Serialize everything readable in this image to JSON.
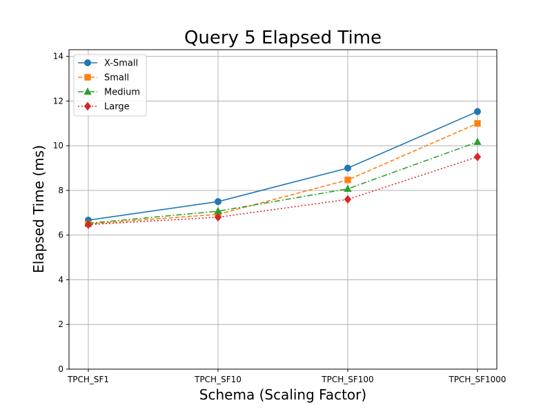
{
  "chart_data": {
    "type": "line",
    "title": "Query 5 Elapsed Time",
    "xlabel": "Schema (Scaling Factor)",
    "ylabel": "Elapsed Time (ms)",
    "categories": [
      "TPCH_SF1",
      "TPCH_SF10",
      "TPCH_SF100",
      "TPCH_SF1000"
    ],
    "ylim": [
      0,
      14.3
    ],
    "yticks": [
      0,
      2,
      4,
      6,
      8,
      10,
      12,
      14
    ],
    "grid": true,
    "legend_position": "top-left",
    "series": [
      {
        "name": "X-Small",
        "values": [
          6.67,
          7.5,
          9.0,
          11.53
        ],
        "color": "#1f77b4",
        "marker": "circle",
        "linestyle": "solid"
      },
      {
        "name": "Small",
        "values": [
          6.5,
          6.93,
          8.47,
          11.0
        ],
        "color": "#ff7f0e",
        "marker": "square",
        "linestyle": "dashed"
      },
      {
        "name": "Medium",
        "values": [
          6.53,
          7.07,
          8.07,
          10.17
        ],
        "color": "#2ca02c",
        "marker": "triangle",
        "linestyle": "dashdot"
      },
      {
        "name": "Large",
        "values": [
          6.47,
          6.8,
          7.6,
          9.5
        ],
        "color": "#d62728",
        "marker": "diamond",
        "linestyle": "dotted"
      }
    ]
  }
}
